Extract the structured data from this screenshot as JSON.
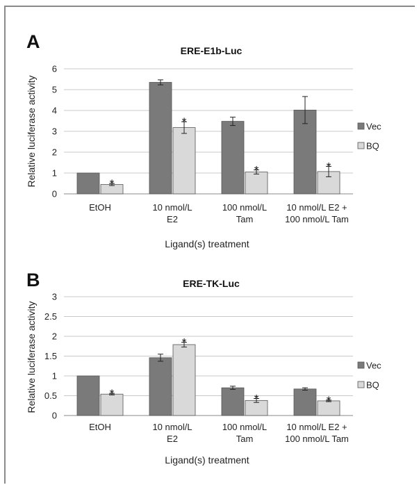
{
  "panels": [
    {
      "letter": "A"
    },
    {
      "letter": "B"
    }
  ],
  "chart_data": [
    {
      "type": "bar",
      "title": "ERE-E1b-Luc",
      "xlabel": "Ligand(s) treatment",
      "ylabel": "Relative luciferase activity",
      "ylim": [
        0,
        6
      ],
      "yticks": [
        "0",
        "1",
        "2",
        "3",
        "4",
        "5",
        "6"
      ],
      "grid": true,
      "legend_position": "right",
      "categories": [
        [
          "EtOH"
        ],
        [
          "10 nmol/L",
          "E2"
        ],
        [
          "100 nmol/L",
          "Tam"
        ],
        [
          "10 nmol/L E2 +",
          "100 nmol/L Tam"
        ]
      ],
      "series": [
        {
          "name": "Vec",
          "color": "#7a7a7a",
          "values": [
            1.0,
            5.35,
            3.48,
            4.02
          ],
          "errors": [
            0,
            0.12,
            0.2,
            0.65
          ],
          "significant": [
            false,
            false,
            false,
            false
          ]
        },
        {
          "name": "BQ",
          "color": "#d9d9d9",
          "values": [
            0.45,
            3.18,
            1.05,
            1.07
          ],
          "errors": [
            0.05,
            0.28,
            0.1,
            0.25
          ],
          "significant": [
            true,
            true,
            true,
            true
          ]
        }
      ],
      "significance_mark": "*"
    },
    {
      "type": "bar",
      "title": "ERE-TK-Luc",
      "xlabel": "Ligand(s) treatment",
      "ylabel": "Relative luciferase activity",
      "ylim": [
        0,
        3
      ],
      "yticks": [
        "0",
        "0.5",
        "1",
        "1.5",
        "2",
        "2.5",
        "3"
      ],
      "grid": true,
      "legend_position": "right",
      "categories": [
        [
          "EtOH"
        ],
        [
          "10 nmol/L",
          "E2"
        ],
        [
          "100 nmol/L",
          "Tam"
        ],
        [
          "10 nmol/L E2 +",
          "100 nmol/L Tam"
        ]
      ],
      "series": [
        {
          "name": "Vec",
          "color": "#7a7a7a",
          "values": [
            1.0,
            1.46,
            0.7,
            0.67
          ],
          "errors": [
            0,
            0.09,
            0.04,
            0.03
          ],
          "significant": [
            false,
            false,
            false,
            false
          ]
        },
        {
          "name": "BQ",
          "color": "#d9d9d9",
          "values": [
            0.54,
            1.79,
            0.38,
            0.37
          ],
          "errors": [
            0.02,
            0.06,
            0.05,
            0.02
          ],
          "significant": [
            true,
            true,
            true,
            true
          ]
        }
      ],
      "significance_mark": "*"
    }
  ]
}
